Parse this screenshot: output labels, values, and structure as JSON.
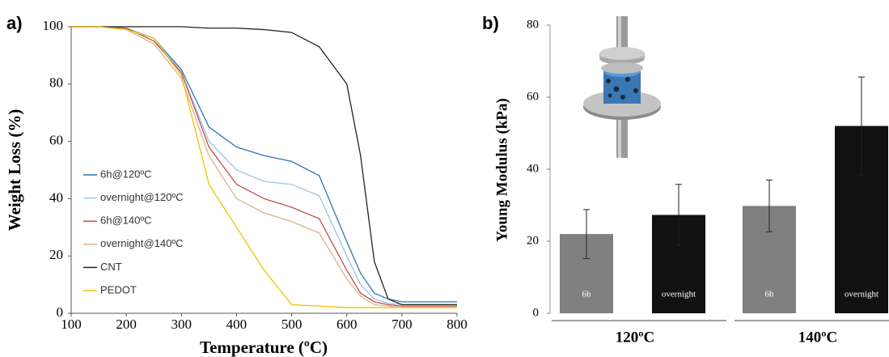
{
  "chart_data": [
    {
      "type": "line",
      "panel_label": "a)",
      "xlabel": "Temperature (ºC)",
      "ylabel": "Weight Loss (%)",
      "xlim": [
        100,
        800
      ],
      "ylim": [
        0,
        100
      ],
      "xticks": [
        100,
        200,
        300,
        400,
        500,
        600,
        700,
        800
      ],
      "yticks": [
        0,
        20,
        40,
        60,
        80,
        100
      ],
      "legend": "lower left",
      "x": [
        100,
        150,
        200,
        250,
        300,
        350,
        400,
        450,
        500,
        550,
        600,
        625,
        650,
        675,
        700,
        750,
        800
      ],
      "series": [
        {
          "name": "6h@120ºC",
          "color": "#2e75b6",
          "values": [
            100,
            100,
            99.5,
            96,
            85,
            65,
            58,
            55,
            53,
            48,
            25,
            14,
            7,
            5,
            4,
            4,
            4
          ]
        },
        {
          "name": "overnight@120ºC",
          "color": "#9dc3e6",
          "values": [
            100,
            100,
            99.5,
            96,
            84,
            60,
            50,
            46,
            45,
            41,
            20,
            10,
            5,
            3.5,
            3,
            3,
            3
          ]
        },
        {
          "name": "6h@140ºC",
          "color": "#c0504d",
          "values": [
            100,
            100,
            99.5,
            95,
            84,
            58,
            45,
            40,
            37,
            33,
            15,
            7,
            4,
            3,
            2.5,
            2.5,
            2.5
          ]
        },
        {
          "name": "overnight@140ºC",
          "color": "#d9b38c",
          "values": [
            100,
            100,
            99,
            94,
            82,
            55,
            40,
            35,
            32,
            28,
            12,
            6,
            3,
            2.5,
            2,
            2,
            2
          ]
        },
        {
          "name": "CNT",
          "color": "#222222",
          "values": [
            100,
            100,
            100,
            100,
            100,
            99.5,
            99.5,
            99,
            98,
            93,
            80,
            55,
            18,
            5,
            3,
            3,
            3
          ]
        },
        {
          "name": "PEDOT",
          "color": "#f2c200",
          "values": [
            100,
            100,
            99,
            96,
            83,
            45,
            30,
            15,
            3,
            2.5,
            2,
            2,
            2,
            2,
            2,
            2,
            2
          ]
        }
      ]
    },
    {
      "type": "bar",
      "panel_label": "b)",
      "ylabel": "Young Modulus (kPa)",
      "ylim": [
        0,
        80
      ],
      "yticks": [
        0,
        20,
        40,
        60,
        80
      ],
      "groups": [
        {
          "label": "120ºC",
          "categories": [
            "6h",
            "overnight"
          ],
          "values": [
            22,
            27.3
          ],
          "errors": [
            6.8,
            8.5
          ],
          "colors": [
            "#808080",
            "#111111"
          ]
        },
        {
          "label": "140ºC",
          "categories": [
            "6h",
            "overnight"
          ],
          "values": [
            29.8,
            52
          ],
          "errors": [
            7.2,
            13.6
          ],
          "colors": [
            "#808080",
            "#111111"
          ]
        }
      ]
    }
  ]
}
